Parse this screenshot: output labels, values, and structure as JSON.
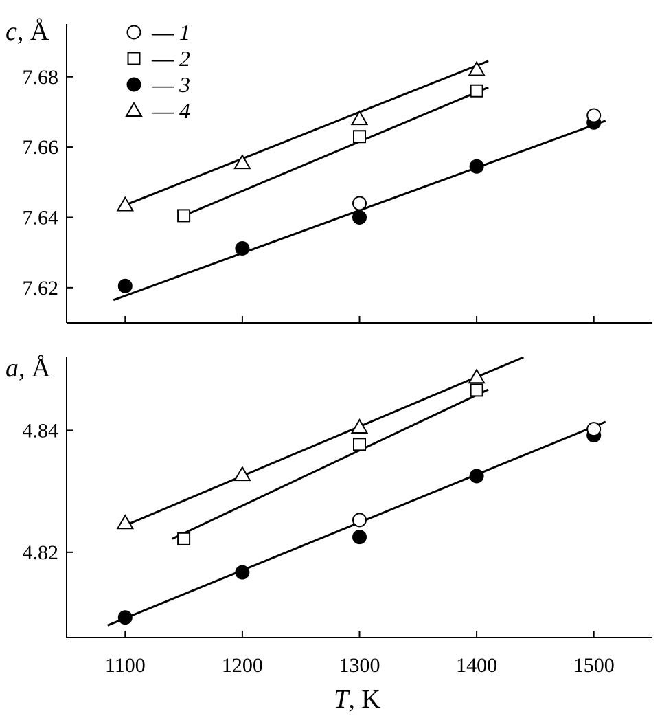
{
  "chart_data": [
    {
      "type": "scatter",
      "ylabel_var": "c",
      "ylabel_unit": ", Å",
      "xlim": [
        1050,
        1550
      ],
      "ylim": [
        7.61,
        7.695
      ],
      "yticks": [
        7.62,
        7.64,
        7.66,
        7.68
      ],
      "ytick_labels": [
        "7.62",
        "7.64",
        "7.66",
        "7.68"
      ],
      "series": [
        {
          "legend_num": "1",
          "marker": "open-circle",
          "x": [
            1300,
            1500
          ],
          "y": [
            7.644,
            7.669
          ]
        },
        {
          "legend_num": "2",
          "marker": "open-square",
          "x": [
            1150,
            1300,
            1400
          ],
          "y": [
            7.6405,
            7.663,
            7.676
          ]
        },
        {
          "legend_num": "3",
          "marker": "filled-circle",
          "x": [
            1100,
            1200,
            1300,
            1400,
            1500
          ],
          "y": [
            7.6205,
            7.6312,
            7.64,
            7.6545,
            7.667
          ]
        },
        {
          "legend_num": "4",
          "marker": "open-triangle",
          "x": [
            1100,
            1200,
            1300,
            1400
          ],
          "y": [
            7.6435,
            7.6555,
            7.668,
            7.682
          ]
        }
      ],
      "fit_lines": [
        {
          "x": [
            1100,
            1410
          ],
          "y": [
            7.6435,
            7.6845
          ]
        },
        {
          "x": [
            1150,
            1410
          ],
          "y": [
            7.6405,
            7.677
          ]
        },
        {
          "x": [
            1090,
            1510
          ],
          "y": [
            7.6165,
            7.6675
          ]
        }
      ],
      "legend": {
        "dash": "—",
        "entries": [
          "1",
          "2",
          "3",
          "4"
        ]
      }
    },
    {
      "type": "scatter",
      "ylabel_var": "a",
      "ylabel_unit": ", Å",
      "xlim": [
        1050,
        1550
      ],
      "ylim": [
        4.806,
        4.852
      ],
      "yticks": [
        4.82,
        4.84
      ],
      "ytick_labels": [
        "4.82",
        "4.84"
      ],
      "series": [
        {
          "legend_num": "1",
          "marker": "open-circle",
          "x": [
            1300,
            1500
          ],
          "y": [
            4.8253,
            4.8402
          ]
        },
        {
          "legend_num": "2",
          "marker": "open-square",
          "x": [
            1150,
            1300,
            1400
          ],
          "y": [
            4.8222,
            4.8377,
            4.8466
          ]
        },
        {
          "legend_num": "3",
          "marker": "filled-circle",
          "x": [
            1100,
            1200,
            1300,
            1400,
            1500
          ],
          "y": [
            4.8093,
            4.8167,
            4.8225,
            4.8325,
            4.8392
          ]
        },
        {
          "legend_num": "4",
          "marker": "open-triangle",
          "x": [
            1100,
            1200,
            1300,
            1400
          ],
          "y": [
            4.8248,
            4.8327,
            4.8405,
            4.8487
          ]
        }
      ],
      "fit_lines": [
        {
          "x": [
            1095,
            1440
          ],
          "y": [
            4.824,
            4.852
          ]
        },
        {
          "x": [
            1140,
            1410
          ],
          "y": [
            4.8222,
            4.8467
          ]
        },
        {
          "x": [
            1085,
            1510
          ],
          "y": [
            4.808,
            4.8414
          ]
        }
      ]
    }
  ],
  "x_axis": {
    "ticks": [
      1100,
      1200,
      1300,
      1400,
      1500
    ],
    "tick_labels": [
      "1100",
      "1200",
      "1300",
      "1400",
      "1500"
    ],
    "label_var": "T",
    "label_unit": ", K"
  }
}
